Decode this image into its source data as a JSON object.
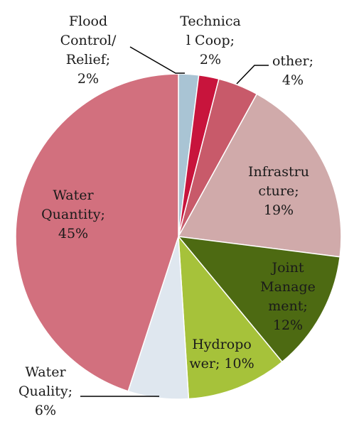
{
  "chart_data": {
    "type": "pie",
    "title": "",
    "slices": [
      {
        "key": "flood",
        "label_lines": [
          "Flood",
          "Control/",
          "Relief;",
          "2%"
        ],
        "value": 2,
        "color": "#a9c4d4"
      },
      {
        "key": "techcoop",
        "label_lines": [
          "Technica",
          "l Coop;",
          "2%"
        ],
        "value": 2,
        "color": "#c8143c"
      },
      {
        "key": "other",
        "label_lines": [
          "other;",
          "4%"
        ],
        "value": 4,
        "color": "#c85a6a"
      },
      {
        "key": "infra",
        "label_lines": [
          "Infrastru",
          "cture;",
          "19%"
        ],
        "value": 19,
        "color": "#d0aaaa"
      },
      {
        "key": "joint",
        "label_lines": [
          "Joint",
          "Manage",
          "ment;",
          "12%"
        ],
        "value": 12,
        "color": "#4d6a12"
      },
      {
        "key": "hydro",
        "label_lines": [
          "Hydropo",
          "wer; 10%"
        ],
        "value": 10,
        "color": "#a6c23a"
      },
      {
        "key": "wqual",
        "label_lines": [
          "Water",
          "Quality;",
          "6%"
        ],
        "value": 6,
        "color": "#dfe7ef"
      },
      {
        "key": "wquant",
        "label_lines": [
          "Water",
          "Quantity;",
          "45%"
        ],
        "value": 45,
        "color": "#d2707e"
      }
    ]
  }
}
